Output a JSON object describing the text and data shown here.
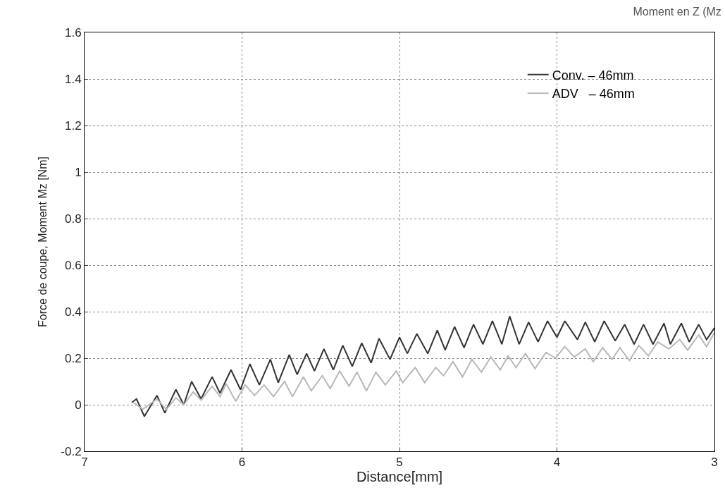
{
  "chart_data": {
    "type": "line",
    "title": "Moment en Z (Mz",
    "xlabel": "Distance[mm]",
    "ylabel": "Force de coupe, Moment Mz [Nm]",
    "xlim": [
      7,
      3
    ],
    "xticks": [
      7,
      6,
      5,
      4,
      3
    ],
    "ylim": [
      -0.2,
      1.6
    ],
    "yticks": [
      -0.2,
      0,
      0.2,
      0.4,
      0.6,
      0.8,
      1,
      1.2,
      1.4,
      1.6
    ],
    "grid": true,
    "legend": "top right",
    "marker": "none",
    "line_style": "solid",
    "series": [
      {
        "name": "Conv. – 46mm",
        "color": "#333333",
        "x": [
          6.7,
          6.67,
          6.62,
          6.54,
          6.49,
          6.42,
          6.37,
          6.32,
          6.26,
          6.19,
          6.14,
          6.07,
          6.01,
          5.95,
          5.89,
          5.82,
          5.77,
          5.7,
          5.65,
          5.59,
          5.54,
          5.48,
          5.42,
          5.36,
          5.3,
          5.24,
          5.18,
          5.13,
          5.06,
          5.0,
          4.95,
          4.89,
          4.82,
          4.76,
          4.71,
          4.65,
          4.59,
          4.53,
          4.47,
          4.41,
          4.35,
          4.3,
          4.24,
          4.18,
          4.12,
          4.06,
          4.0,
          3.95,
          3.87,
          3.82,
          3.76,
          3.7,
          3.63,
          3.57,
          3.51,
          3.45,
          3.39,
          3.32,
          3.28,
          3.21,
          3.16,
          3.1,
          3.05,
          3.0
        ],
        "values": [
          0.01,
          0.025,
          -0.05,
          0.04,
          -0.035,
          0.065,
          0.0,
          0.1,
          0.025,
          0.12,
          0.05,
          0.15,
          0.065,
          0.175,
          0.085,
          0.195,
          0.095,
          0.215,
          0.13,
          0.22,
          0.145,
          0.24,
          0.15,
          0.255,
          0.165,
          0.265,
          0.18,
          0.285,
          0.195,
          0.29,
          0.22,
          0.305,
          0.22,
          0.32,
          0.235,
          0.335,
          0.245,
          0.345,
          0.26,
          0.36,
          0.26,
          0.38,
          0.26,
          0.355,
          0.27,
          0.36,
          0.29,
          0.36,
          0.28,
          0.355,
          0.27,
          0.36,
          0.275,
          0.345,
          0.26,
          0.345,
          0.26,
          0.35,
          0.26,
          0.35,
          0.27,
          0.345,
          0.28,
          0.33
        ]
      },
      {
        "name": "ADV   – 46mm",
        "color": "#b8b8b8",
        "x": [
          6.69,
          6.63,
          6.54,
          6.48,
          6.42,
          6.37,
          6.31,
          6.26,
          6.19,
          6.14,
          6.1,
          6.04,
          5.98,
          5.92,
          5.86,
          5.8,
          5.73,
          5.68,
          5.61,
          5.56,
          5.49,
          5.44,
          5.38,
          5.32,
          5.27,
          5.21,
          5.15,
          5.09,
          5.02,
          4.98,
          4.9,
          4.84,
          4.77,
          4.72,
          4.66,
          4.6,
          4.54,
          4.48,
          4.42,
          4.36,
          4.31,
          4.26,
          4.2,
          4.14,
          4.07,
          4.01,
          3.95,
          3.89,
          3.82,
          3.77,
          3.71,
          3.65,
          3.6,
          3.54,
          3.48,
          3.42,
          3.36,
          3.29,
          3.22,
          3.17,
          3.1,
          3.05,
          3.0
        ],
        "values": [
          0.01,
          -0.02,
          0.025,
          -0.02,
          0.03,
          0.0,
          0.055,
          0.02,
          0.08,
          0.035,
          0.09,
          0.015,
          0.085,
          0.04,
          0.085,
          0.035,
          0.1,
          0.035,
          0.12,
          0.06,
          0.125,
          0.07,
          0.145,
          0.08,
          0.14,
          0.06,
          0.14,
          0.085,
          0.145,
          0.095,
          0.16,
          0.095,
          0.16,
          0.125,
          0.185,
          0.12,
          0.195,
          0.14,
          0.205,
          0.15,
          0.21,
          0.16,
          0.22,
          0.155,
          0.225,
          0.2,
          0.25,
          0.205,
          0.24,
          0.185,
          0.245,
          0.195,
          0.245,
          0.19,
          0.255,
          0.21,
          0.27,
          0.24,
          0.28,
          0.235,
          0.3,
          0.25,
          0.31
        ]
      }
    ]
  }
}
